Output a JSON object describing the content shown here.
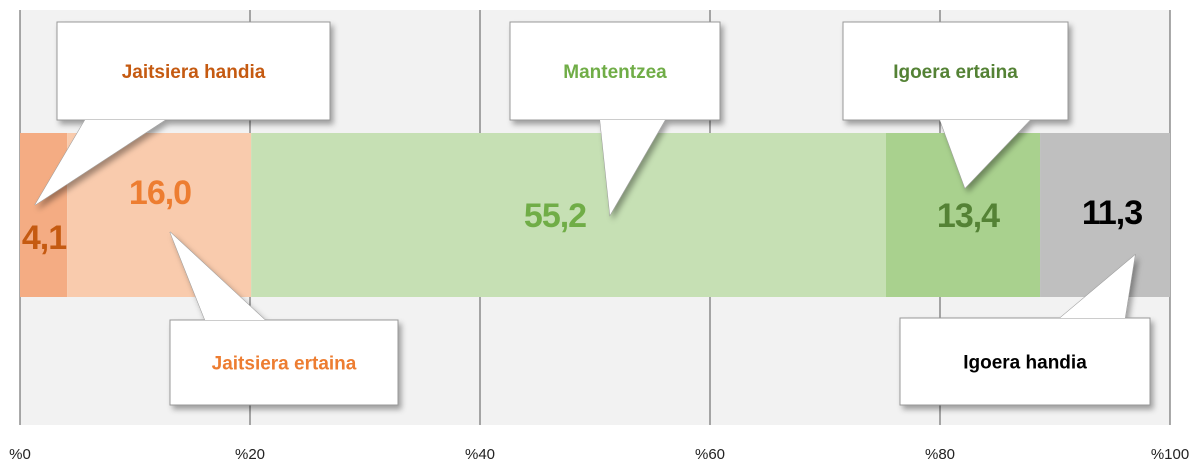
{
  "chart_data": {
    "type": "stacked-bar",
    "orientation": "horizontal",
    "series": [
      {
        "name": "Jaitsiera handia",
        "color": "#f4ac83",
        "label_color": "#c55a11",
        "values": [
          4.1
        ],
        "value_labels": [
          "4,1"
        ]
      },
      {
        "name": "Jaitsiera ertaina",
        "color": "#f9cbad",
        "label_color": "#ed7d31",
        "values": [
          16.0
        ],
        "value_labels": [
          "16,0"
        ]
      },
      {
        "name": "Mantentzea",
        "color": "#c6e0b4",
        "label_color": "#70ad47",
        "values": [
          55.2
        ],
        "value_labels": [
          "55,2"
        ]
      },
      {
        "name": "Igoera ertaina",
        "color": "#a9d18e",
        "label_color": "#548235",
        "values": [
          13.4
        ],
        "value_labels": [
          "13,4"
        ]
      },
      {
        "name": "Igoera handia",
        "color": "#bfbfbf",
        "label_color": "#000000",
        "values": [
          11.3
        ],
        "value_labels": [
          "11,3"
        ]
      }
    ],
    "xlim": [
      0,
      100
    ],
    "xticks": [
      {
        "value": 0,
        "label": "%0"
      },
      {
        "value": 20,
        "label": "%20"
      },
      {
        "value": 40,
        "label": "%40"
      },
      {
        "value": 60,
        "label": "%60"
      },
      {
        "value": 80,
        "label": "%80"
      },
      {
        "value": 100,
        "label": "%100"
      }
    ],
    "grid": true
  }
}
